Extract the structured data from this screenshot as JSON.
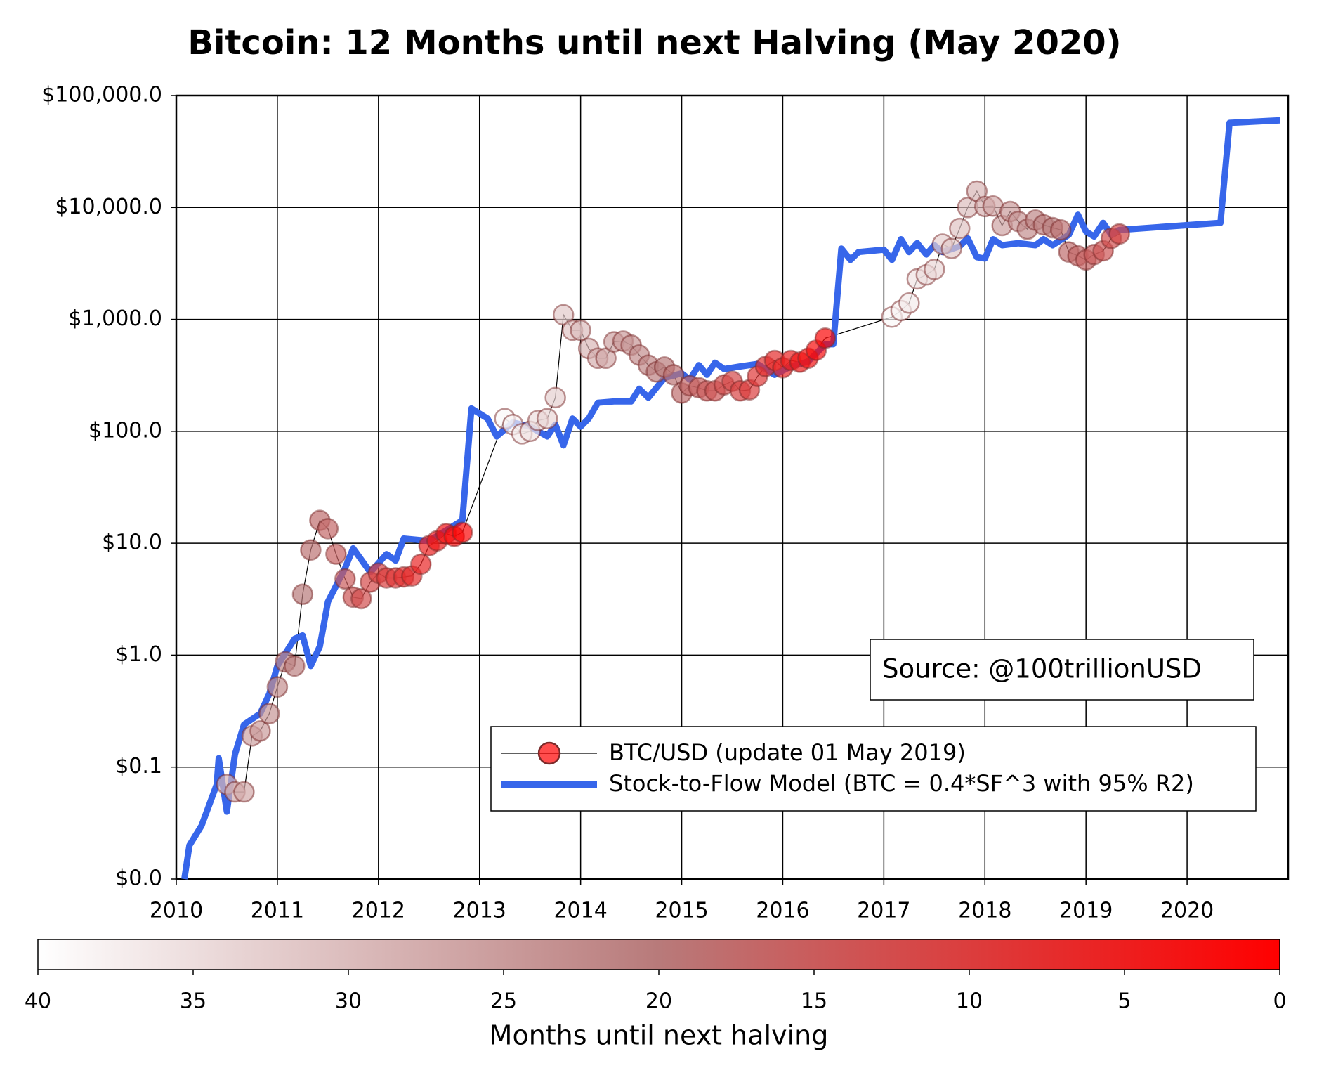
{
  "chart_data": {
    "type": "scatter-line",
    "title": "Bitcoin: 12 Months until next Halving (May 2020)",
    "annotation": "Source: @100trillionUSD",
    "log_y": true,
    "grid": true,
    "legend": "lower right",
    "xlim": [
      2010,
      2021
    ],
    "xticks": [
      2010,
      2011,
      2012,
      2013,
      2014,
      2015,
      2016,
      2017,
      2018,
      2019,
      2020
    ],
    "ylim": [
      0.01,
      100000
    ],
    "yticks": [
      {
        "value": 0.01,
        "label": "$0.0"
      },
      {
        "value": 0.1,
        "label": "$0.1"
      },
      {
        "value": 1,
        "label": "$1.0"
      },
      {
        "value": 10,
        "label": "$10.0"
      },
      {
        "value": 100,
        "label": "$100.0"
      },
      {
        "value": 1000,
        "label": "$1,000.0"
      },
      {
        "value": 10000,
        "label": "$10,000.0"
      },
      {
        "value": 100000,
        "label": "$100,000.0"
      }
    ],
    "colorbar": {
      "label": "Months until next halving",
      "lim": [
        40,
        0
      ],
      "ticks": [
        40,
        35,
        30,
        25,
        20,
        15,
        10,
        5,
        0
      ],
      "colormap": [
        "#ffffff",
        "#b87a7a",
        "#ff0000"
      ]
    },
    "series": [
      {
        "name": "BTC/USD (update 01 May 2019)",
        "color": "#000000",
        "x": [
          2010.5,
          2010.58,
          2010.67,
          2010.75,
          2010.83,
          2010.92,
          2011.0,
          2011.08,
          2011.17,
          2011.25,
          2011.33,
          2011.42,
          2011.5,
          2011.58,
          2011.67,
          2011.75,
          2011.83,
          2011.92,
          2012.0,
          2012.08,
          2012.17,
          2012.25,
          2012.33,
          2012.42,
          2012.5,
          2012.58,
          2012.67,
          2012.75,
          2012.83,
          2013.25,
          2013.33,
          2013.42,
          2013.5,
          2013.58,
          2013.67,
          2013.75,
          2013.83,
          2013.92,
          2014.0,
          2014.08,
          2014.17,
          2014.25,
          2014.33,
          2014.42,
          2014.5,
          2014.58,
          2014.67,
          2014.75,
          2014.83,
          2014.92,
          2015.0,
          2015.08,
          2015.17,
          2015.25,
          2015.33,
          2015.42,
          2015.5,
          2015.58,
          2015.67,
          2015.75,
          2015.83,
          2015.92,
          2016.0,
          2016.08,
          2016.17,
          2016.25,
          2016.33,
          2016.42,
          2017.08,
          2017.17,
          2017.25,
          2017.33,
          2017.42,
          2017.5,
          2017.58,
          2017.67,
          2017.75,
          2017.83,
          2017.92,
          2018.0,
          2018.08,
          2018.17,
          2018.25,
          2018.33,
          2018.42,
          2018.5,
          2018.58,
          2018.67,
          2018.75,
          2018.83,
          2018.92,
          2019.0,
          2019.08,
          2019.17,
          2019.25,
          2019.33
        ],
        "values": [
          0.07,
          0.06,
          0.06,
          0.19,
          0.21,
          0.3,
          0.52,
          0.87,
          0.8,
          3.5,
          8.7,
          16,
          13.5,
          8,
          4.8,
          3.3,
          3.2,
          4.5,
          5.4,
          4.9,
          4.9,
          5.0,
          5.1,
          6.5,
          9.5,
          10.5,
          12.2,
          11.5,
          12.5,
          130,
          115,
          95,
          100,
          125,
          130,
          200,
          1100,
          800,
          800,
          550,
          450,
          450,
          630,
          640,
          590,
          480,
          390,
          340,
          375,
          320,
          220,
          255,
          245,
          230,
          230,
          260,
          280,
          230,
          235,
          310,
          380,
          430,
          370,
          430,
          415,
          450,
          530,
          680,
          1050,
          1200,
          1400,
          2300,
          2500,
          2800,
          4700,
          4300,
          6500,
          10000,
          14000,
          10200,
          10300,
          6900,
          9200,
          7500,
          6400,
          7700,
          7000,
          6600,
          6300,
          4000,
          3700,
          3400,
          3800,
          4100,
          5300,
          5800
        ],
        "months": [
          29,
          28,
          27,
          26,
          25,
          24,
          23,
          22,
          21,
          20,
          19,
          18,
          17,
          16,
          15,
          14,
          13,
          12,
          11,
          10,
          9,
          8,
          7,
          6,
          5,
          4,
          3,
          2,
          1,
          39,
          38,
          37,
          36,
          35,
          34,
          33,
          32,
          31,
          30,
          29,
          28,
          27,
          26,
          25,
          24,
          23,
          22,
          21,
          20,
          19,
          18,
          17,
          16,
          15,
          14,
          13,
          12,
          11,
          10,
          9,
          8,
          7,
          6,
          5,
          4,
          3,
          2,
          1,
          39,
          38,
          37,
          36,
          35,
          34,
          33,
          32,
          31,
          30,
          29,
          28,
          27,
          26,
          25,
          24,
          23,
          22,
          21,
          20,
          19,
          18,
          17,
          16,
          15,
          14,
          13,
          12
        ]
      },
      {
        "name": "Stock-to-Flow Model (BTC = 0.4*SF^3 with 95% R2)",
        "color": "#3766ea",
        "x": [
          2010.08,
          2010.13,
          2010.25,
          2010.4,
          2010.42,
          2010.5,
          2010.58,
          2010.67,
          2010.83,
          2010.92,
          2011.0,
          2011.17,
          2011.25,
          2011.33,
          2011.42,
          2011.5,
          2011.67,
          2011.75,
          2011.92,
          2012.08,
          2012.17,
          2012.25,
          2012.5,
          2012.83,
          2012.92,
          2013.08,
          2013.17,
          2013.33,
          2013.5,
          2013.67,
          2013.75,
          2013.83,
          2013.92,
          2014.0,
          2014.08,
          2014.17,
          2014.33,
          2014.5,
          2014.58,
          2014.67,
          2014.83,
          2015.0,
          2015.08,
          2015.17,
          2015.25,
          2015.33,
          2015.42,
          2015.58,
          2015.75,
          2015.92,
          2016.08,
          2016.25,
          2016.42,
          2016.5,
          2016.58,
          2016.67,
          2016.75,
          2017.0,
          2017.08,
          2017.17,
          2017.25,
          2017.33,
          2017.42,
          2017.5,
          2017.58,
          2017.75,
          2017.83,
          2017.92,
          2018.0,
          2018.08,
          2018.17,
          2018.33,
          2018.5,
          2018.58,
          2018.67,
          2018.83,
          2018.92,
          2019.0,
          2019.08,
          2019.17,
          2019.25,
          2019.33,
          2020.33,
          2020.42,
          2020.92
        ],
        "values": [
          0.01,
          0.02,
          0.03,
          0.07,
          0.12,
          0.04,
          0.13,
          0.24,
          0.3,
          0.45,
          0.8,
          1.4,
          1.5,
          0.8,
          1.2,
          3,
          6,
          9,
          5.5,
          8,
          7,
          11,
          10.5,
          16,
          160,
          130,
          90,
          120,
          110,
          90,
          115,
          75,
          130,
          110,
          130,
          180,
          185,
          185,
          240,
          200,
          300,
          330,
          290,
          390,
          320,
          410,
          360,
          380,
          400,
          320,
          380,
          420,
          600,
          600,
          4300,
          3400,
          4000,
          4200,
          3400,
          5200,
          4000,
          4800,
          3800,
          4600,
          4000,
          4500,
          5300,
          3600,
          3500,
          5200,
          4600,
          4800,
          4600,
          5200,
          4600,
          5700,
          8600,
          6100,
          5500,
          7300,
          5700,
          6300,
          7300,
          57000,
          60000
        ]
      }
    ]
  }
}
